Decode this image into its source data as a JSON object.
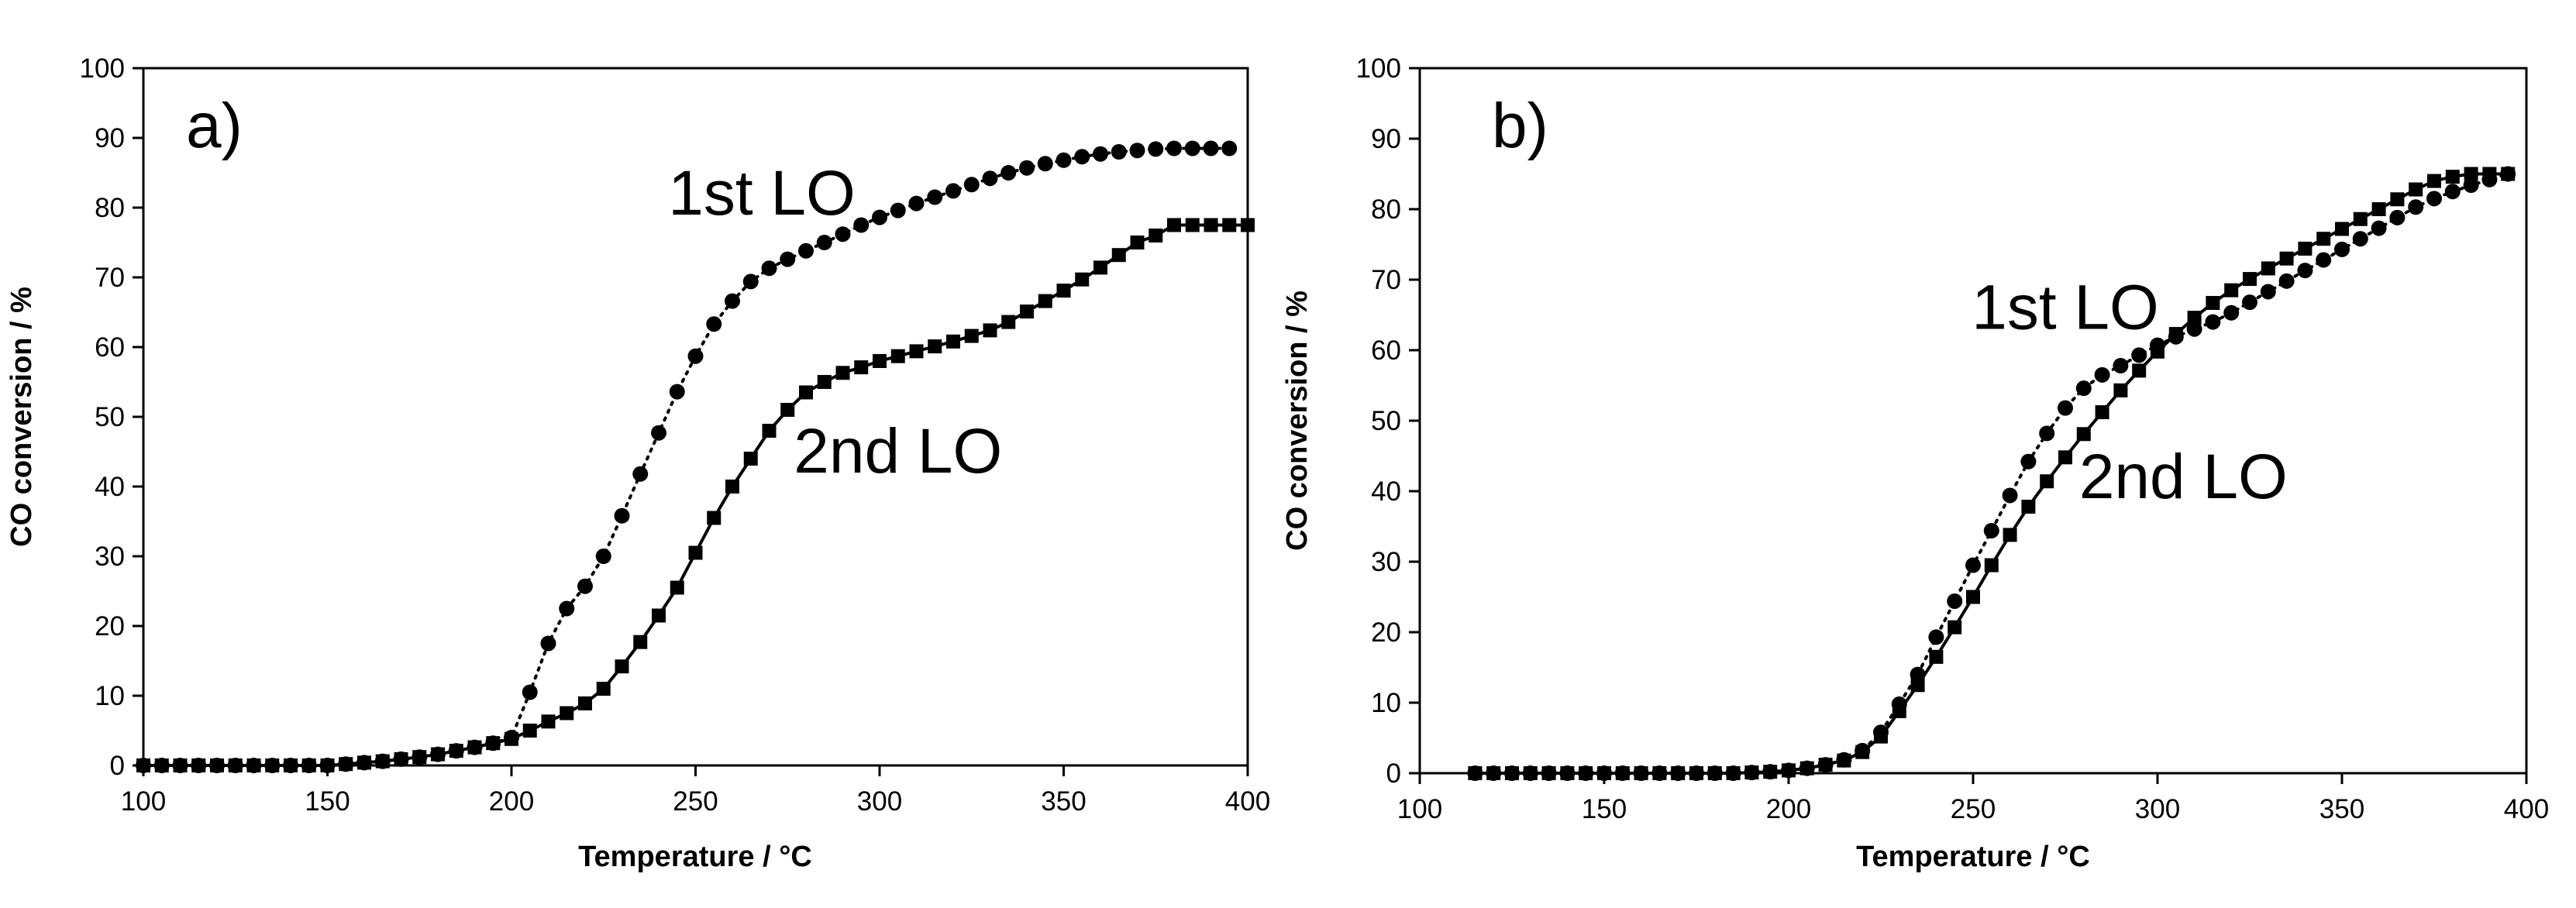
{
  "chart_data": [
    {
      "type": "line",
      "panel_label": "a)",
      "xlabel": "Temperature / °C",
      "ylabel": "CO conversion / %",
      "xlim": [
        100,
        400
      ],
      "ylim": [
        0,
        100
      ],
      "xticks": [
        100,
        150,
        200,
        250,
        300,
        350,
        400
      ],
      "yticks": [
        0,
        10,
        20,
        30,
        40,
        50,
        60,
        70,
        80,
        90,
        100
      ],
      "grid": false,
      "annotations": [
        {
          "text": "1st LO",
          "x": 268,
          "y": 79
        },
        {
          "text": "2nd LO",
          "x": 305,
          "y": 42
        }
      ],
      "series": [
        {
          "name": "1st LO",
          "marker": "circle",
          "line": "dotted",
          "x": [
            100,
            105,
            110,
            115,
            120,
            125,
            130,
            135,
            140,
            145,
            150,
            155,
            160,
            165,
            170,
            175,
            180,
            185,
            190,
            195,
            200,
            205,
            210,
            215,
            220,
            225,
            230,
            235,
            240,
            245,
            250,
            255,
            260,
            265,
            270,
            275,
            280,
            285,
            290,
            295,
            300,
            305,
            310,
            315,
            320,
            325,
            330,
            335,
            340,
            345,
            350,
            355,
            360,
            365,
            370,
            375,
            380,
            385,
            390,
            395
          ],
          "y": [
            0,
            0,
            0,
            0,
            0,
            0,
            0,
            0,
            0,
            0,
            0,
            0.2,
            0.4,
            0.6,
            0.9,
            1.2,
            1.6,
            2.1,
            2.6,
            3.2,
            4,
            10.5,
            17.5,
            22.5,
            25.7,
            30,
            35.8,
            41.8,
            47.7,
            53.6,
            58.7,
            63.3,
            66.6,
            69.4,
            71.3,
            72.6,
            73.8,
            75,
            76.2,
            77.5,
            78.6,
            79.6,
            80.6,
            81.5,
            82.4,
            83.3,
            84.2,
            85,
            85.7,
            86.3,
            86.8,
            87.3,
            87.7,
            88,
            88.2,
            88.4,
            88.5,
            88.5,
            88.5,
            88.5
          ]
        },
        {
          "name": "2nd LO",
          "marker": "square",
          "line": "solid",
          "x": [
            100,
            105,
            110,
            115,
            120,
            125,
            130,
            135,
            140,
            145,
            150,
            155,
            160,
            165,
            170,
            175,
            180,
            185,
            190,
            195,
            200,
            205,
            210,
            215,
            220,
            225,
            230,
            235,
            240,
            245,
            250,
            255,
            260,
            265,
            270,
            275,
            280,
            285,
            290,
            295,
            300,
            305,
            310,
            315,
            320,
            325,
            330,
            335,
            340,
            345,
            350,
            355,
            360,
            365,
            370,
            375,
            380,
            385,
            390,
            395,
            400
          ],
          "y": [
            0,
            0,
            0,
            0,
            0,
            0,
            0,
            0,
            0,
            0,
            0,
            0.2,
            0.4,
            0.6,
            0.9,
            1.2,
            1.6,
            2.1,
            2.6,
            3.2,
            3.8,
            5,
            6.3,
            7.5,
            8.9,
            11,
            14.2,
            17.7,
            21.5,
            25.5,
            30.5,
            35.5,
            40,
            44,
            48,
            51,
            53.5,
            55,
            56.3,
            57.1,
            58,
            58.7,
            59.4,
            60.1,
            60.8,
            61.6,
            62.4,
            63.6,
            65.1,
            66.6,
            68.1,
            69.7,
            71.4,
            73.2,
            75,
            76,
            77.5,
            77.5,
            77.5,
            77.5,
            77.5
          ]
        }
      ]
    },
    {
      "type": "line",
      "panel_label": "b)",
      "xlabel": "Temperature / °C",
      "ylabel": "CO conversion / %",
      "xlim": [
        100,
        400
      ],
      "ylim": [
        0,
        100
      ],
      "xticks": [
        100,
        150,
        200,
        250,
        300,
        350,
        400
      ],
      "yticks": [
        0,
        10,
        20,
        30,
        40,
        50,
        60,
        70,
        80,
        90,
        100
      ],
      "grid": false,
      "annotations": [
        {
          "text": "1st LO",
          "x": 275,
          "y": 63
        },
        {
          "text": "2nd LO",
          "x": 307,
          "y": 39
        }
      ],
      "series": [
        {
          "name": "1st LO",
          "marker": "circle",
          "line": "dotted",
          "x": [
            115,
            120,
            125,
            130,
            135,
            140,
            145,
            150,
            155,
            160,
            165,
            170,
            175,
            180,
            185,
            190,
            195,
            200,
            205,
            210,
            215,
            220,
            225,
            230,
            235,
            240,
            245,
            250,
            255,
            260,
            265,
            270,
            275,
            280,
            285,
            290,
            295,
            300,
            305,
            310,
            315,
            320,
            325,
            330,
            335,
            340,
            345,
            350,
            355,
            360,
            365,
            370,
            375,
            380,
            385,
            390,
            395
          ],
          "y": [
            0,
            0,
            0,
            0,
            0,
            0,
            0,
            0,
            0,
            0,
            0,
            0,
            0,
            0,
            0,
            0.1,
            0.2,
            0.4,
            0.7,
            1.2,
            1.9,
            3.2,
            5.8,
            9.8,
            14,
            19.3,
            24.4,
            29.5,
            34.4,
            39.4,
            44.2,
            48.2,
            51.8,
            54.6,
            56.5,
            57.8,
            59.3,
            60.7,
            61.9,
            63,
            64,
            65.3,
            66.8,
            68.3,
            69.8,
            71.3,
            72.8,
            74.3,
            75.8,
            77.3,
            78.8,
            80.3,
            81.5,
            82.5,
            83.4,
            84.2,
            85
          ]
        },
        {
          "name": "2nd LO",
          "marker": "square",
          "line": "solid",
          "x": [
            115,
            120,
            125,
            130,
            135,
            140,
            145,
            150,
            155,
            160,
            165,
            170,
            175,
            180,
            185,
            190,
            195,
            200,
            205,
            210,
            215,
            220,
            225,
            230,
            235,
            240,
            245,
            250,
            255,
            260,
            265,
            270,
            275,
            280,
            285,
            290,
            295,
            300,
            305,
            310,
            315,
            320,
            325,
            330,
            335,
            340,
            345,
            350,
            355,
            360,
            365,
            370,
            375,
            380,
            385,
            390,
            395
          ],
          "y": [
            0,
            0,
            0,
            0,
            0,
            0,
            0,
            0,
            0,
            0,
            0,
            0,
            0,
            0,
            0,
            0.1,
            0.2,
            0.4,
            0.7,
            1.2,
            1.8,
            3,
            5.2,
            8.8,
            12.5,
            16.5,
            20.7,
            25,
            29.5,
            33.8,
            37.8,
            41.4,
            44.8,
            48.1,
            51.2,
            54.3,
            57.1,
            59.8,
            62.3,
            64.6,
            66.7,
            68.5,
            70.1,
            71.6,
            73,
            74.4,
            75.8,
            77.2,
            78.6,
            80,
            81.4,
            82.8,
            84,
            84.6,
            85,
            85,
            85
          ]
        }
      ]
    }
  ]
}
